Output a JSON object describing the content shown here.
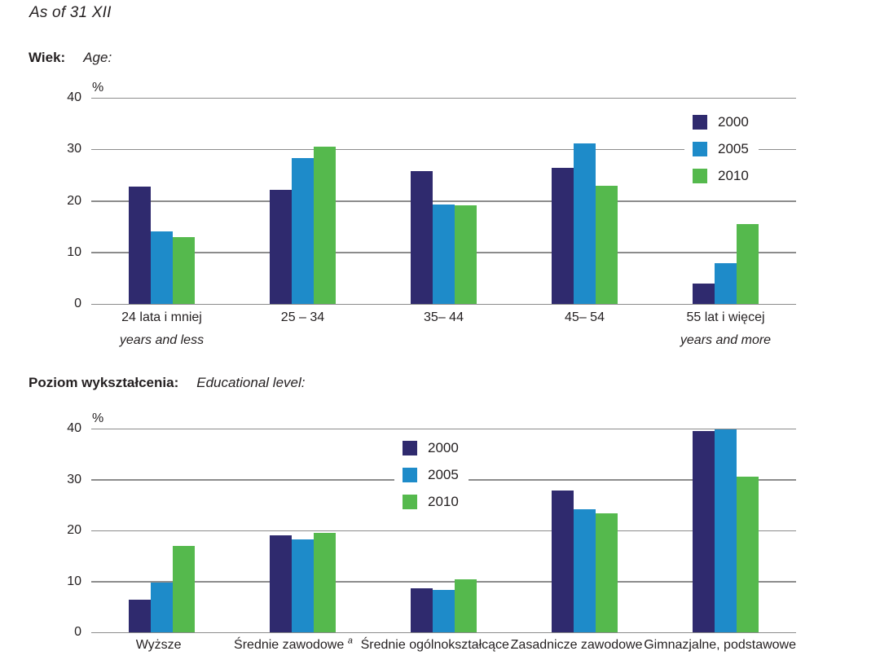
{
  "page": {
    "note": "As of 31 XII"
  },
  "chart_data": [
    {
      "type": "bar",
      "title": "Wiek:",
      "title_en": "Age:",
      "unit": "%",
      "ylim": [
        0,
        40
      ],
      "yticks": [
        0,
        10,
        20,
        30,
        40
      ],
      "grid": true,
      "grid_color": "#8c8c8c",
      "legend_position": "inside-top-right",
      "categories": [
        {
          "label": "24 lata i mniej",
          "sublabel": "years and less"
        },
        {
          "label": "25 – 34",
          "sublabel": ""
        },
        {
          "label": "35– 44",
          "sublabel": ""
        },
        {
          "label": "45– 54",
          "sublabel": ""
        },
        {
          "label": "55 lat i więcej",
          "sublabel": "years and more"
        }
      ],
      "series": [
        {
          "name": "2000",
          "color": "#2f2a6e",
          "values": [
            22.8,
            22.2,
            25.7,
            26.4,
            4.0
          ]
        },
        {
          "name": "2005",
          "color": "#1e8bc9",
          "values": [
            14.0,
            28.3,
            19.3,
            31.1,
            7.9
          ]
        },
        {
          "name": "2010",
          "color": "#55b94d",
          "values": [
            13.0,
            30.5,
            19.2,
            22.9,
            15.5
          ]
        }
      ]
    },
    {
      "type": "bar",
      "title": "Poziom wykształcenia:",
      "title_en": "Educational level:",
      "unit": "%",
      "ylim": [
        0,
        40
      ],
      "yticks": [
        0,
        10,
        20,
        30,
        40
      ],
      "grid": true,
      "grid_color": "#8c8c8c",
      "legend_position": "inside-top-center",
      "categories": [
        {
          "label": "Wyższe",
          "sublabel": ""
        },
        {
          "label": "Średnie zawodowe",
          "sup": "a",
          "sublabel": ""
        },
        {
          "label": "Średnie ogólnokształcące",
          "sublabel": ""
        },
        {
          "label": "Zasadnicze zawodowe",
          "sublabel": ""
        },
        {
          "label": "Gimnazjalne, podstawowe",
          "sublabel": ""
        }
      ],
      "series": [
        {
          "name": "2000",
          "color": "#2f2a6e",
          "values": [
            6.4,
            19.1,
            8.7,
            27.8,
            39.5
          ]
        },
        {
          "name": "2005",
          "color": "#1e8bc9",
          "values": [
            9.8,
            18.3,
            8.4,
            24.2,
            39.9
          ]
        },
        {
          "name": "2010",
          "color": "#55b94d",
          "values": [
            17.0,
            19.5,
            10.4,
            23.3,
            30.5
          ]
        }
      ]
    }
  ]
}
